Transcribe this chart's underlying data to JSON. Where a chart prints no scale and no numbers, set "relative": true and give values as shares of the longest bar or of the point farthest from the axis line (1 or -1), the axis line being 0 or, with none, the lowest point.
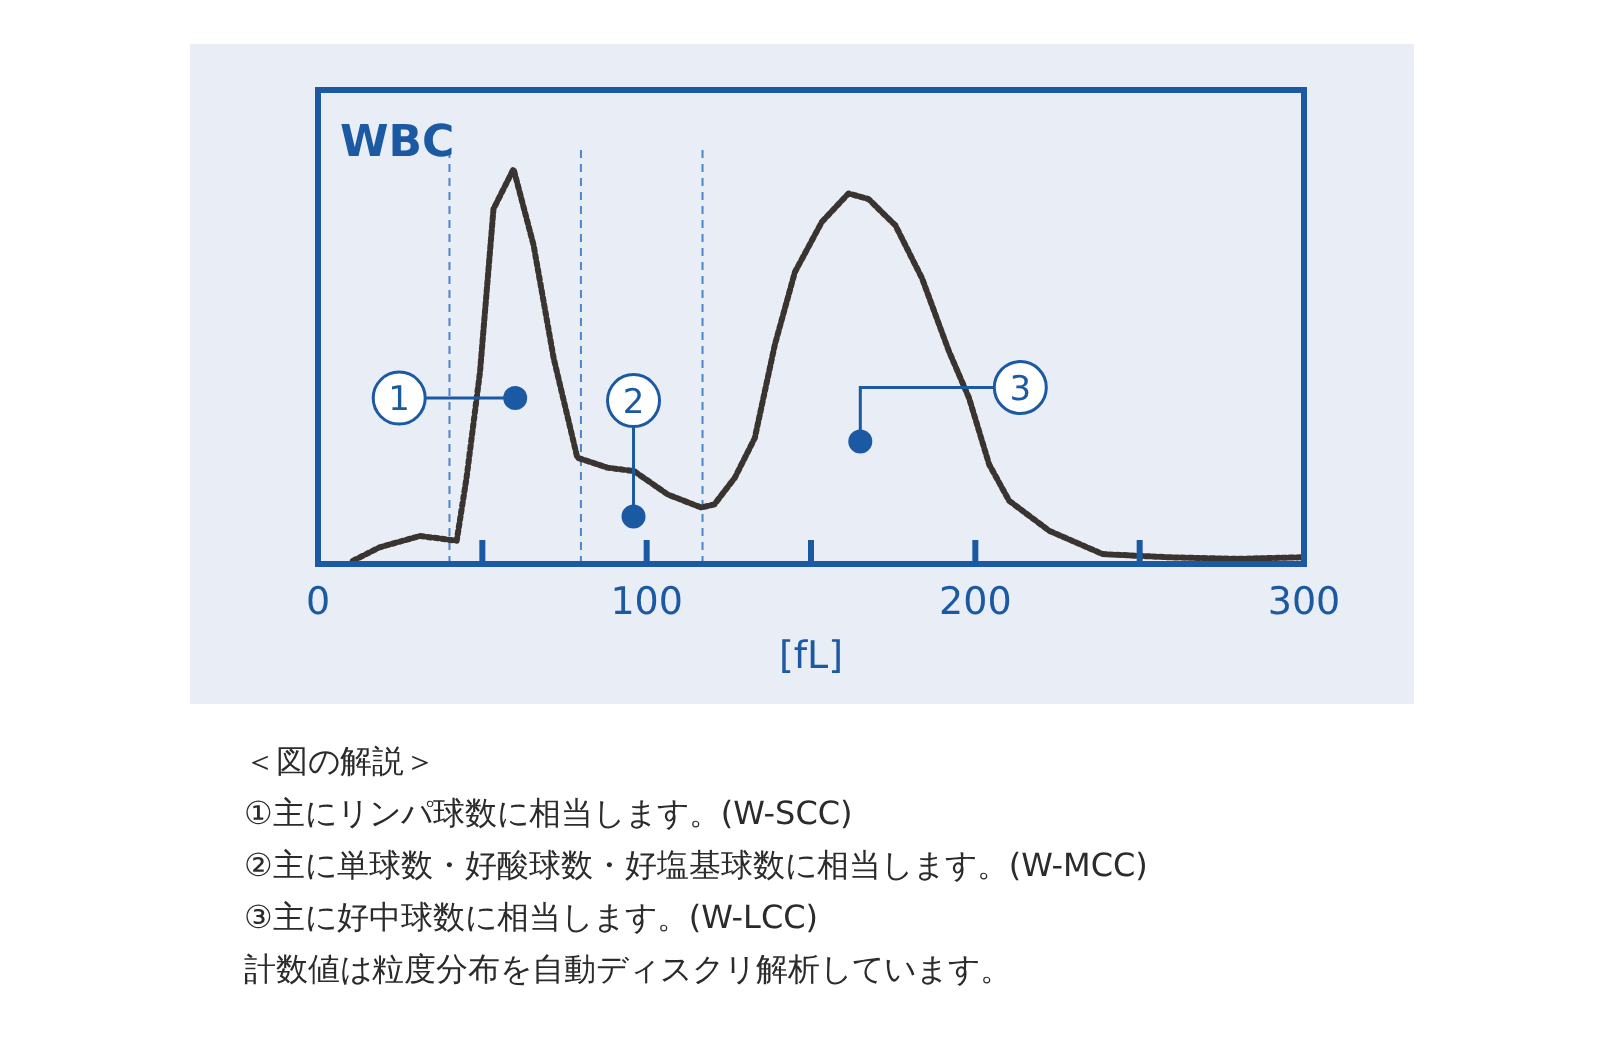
{
  "chart_data": {
    "type": "line",
    "relative": true,
    "title": "WBC",
    "xlabel": "[fL]",
    "xlim": [
      0,
      300
    ],
    "xticks": [
      0,
      {
        "value": 50,
        "label": null
      },
      100,
      {
        "value": 150,
        "label": null
      },
      200,
      {
        "value": 250,
        "label": null
      },
      300
    ],
    "grid": false,
    "marker": "none",
    "line_style": "dotted",
    "series": [
      {
        "color": "#3a3431",
        "x": [
          10.6,
          18.7,
          31,
          42.2,
          45.2,
          49.3,
          53.4,
          59.5,
          65.6,
          71.7,
          78.9,
          88,
          96.2,
          106.4,
          116.6,
          120.6,
          126.8,
          132.9,
          139,
          145.1,
          153.3,
          161.4,
          167.5,
          175.7,
          183.8,
          192,
          198.1,
          204.2,
          210.3,
          222.5,
          238.8,
          259.2,
          279.6,
          299
        ],
        "values": [
          0.008,
          0.042,
          0.071,
          0.059,
          0.218,
          0.487,
          0.899,
          1.0,
          0.807,
          0.521,
          0.269,
          0.244,
          0.235,
          0.176,
          0.143,
          0.151,
          0.218,
          0.319,
          0.555,
          0.739,
          0.866,
          0.938,
          0.924,
          0.857,
          0.723,
          0.538,
          0.42,
          0.252,
          0.16,
          0.084,
          0.025,
          0.017,
          0.013,
          0.017
        ]
      }
    ],
    "ref_lines": [
      {
        "axis": "x",
        "value": 40,
        "color": "#4a86cc",
        "line_style": "dashed"
      },
      {
        "axis": "x",
        "value": 80,
        "color": "#4a86cc",
        "line_style": "dashed"
      },
      {
        "axis": "x",
        "value": 117,
        "color": "#4a86cc",
        "line_style": "dashed"
      }
    ],
    "annotations": [
      {
        "text": "1",
        "x": 60,
        "y": 0.42
      },
      {
        "text": "2",
        "x": 96,
        "y": 0.12
      },
      {
        "text": "3",
        "x": 165,
        "y": 0.31
      },
      "＜図の解説＞",
      "①主にリンパ球数に相当します。(W-SCC)",
      "②主に単球数・好酸球数・好塩基球数に相当します。(W-MCC)",
      "③主に好中球数に相当します。(W-LCC)",
      "計数値は粒度分布を自動ディスクリ解析しています。"
    ]
  }
}
